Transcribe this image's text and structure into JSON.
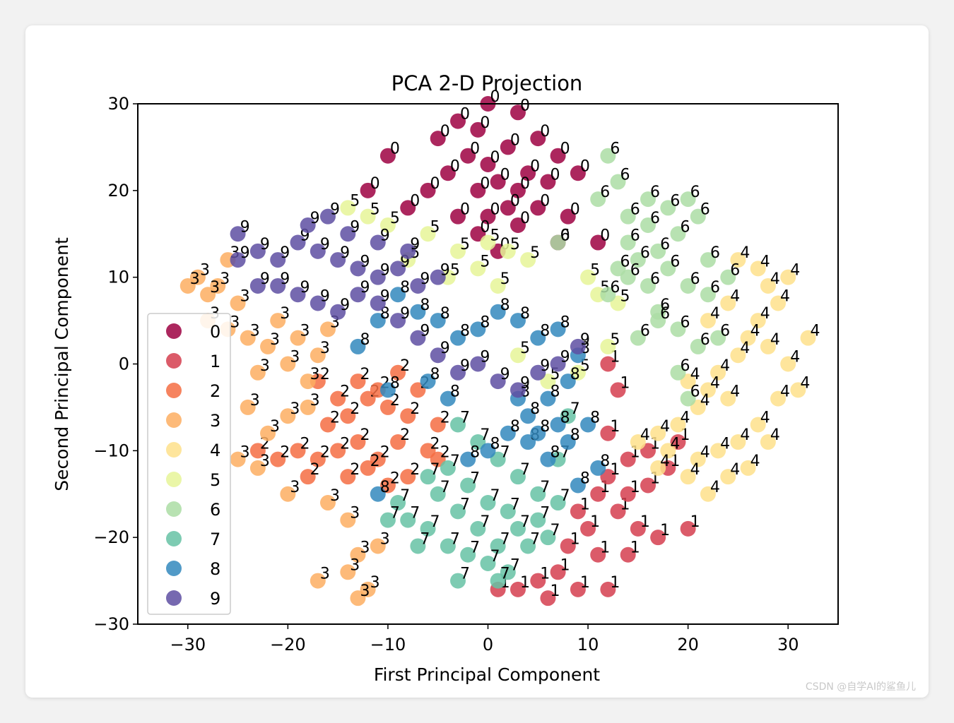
{
  "watermark": "CSDN @自学AI的鲨鱼儿",
  "chart_data": {
    "type": "scatter",
    "title": "PCA 2-D Projection",
    "xlabel": "First Principal Component",
    "ylabel": "Second Principal Component",
    "xlim": [
      -35,
      35
    ],
    "ylim": [
      -30,
      30
    ],
    "xticks": [
      -30,
      -20,
      -10,
      0,
      10,
      20,
      30
    ],
    "yticks": [
      -30,
      -20,
      -10,
      0,
      10,
      20,
      30
    ],
    "grid": false,
    "legend_position": "left",
    "colormap": "Spectral",
    "marker_annotations": "digit label drawn next to each point",
    "series": [
      {
        "name": "0",
        "color": "#9e0142",
        "points": [
          [
            0,
            30
          ],
          [
            -3,
            28
          ],
          [
            3,
            29
          ],
          [
            -5,
            26
          ],
          [
            -1,
            27
          ],
          [
            2,
            25
          ],
          [
            5,
            26
          ],
          [
            7,
            24
          ],
          [
            -2,
            24
          ],
          [
            0,
            23
          ],
          [
            4,
            22
          ],
          [
            -4,
            22
          ],
          [
            1,
            21
          ],
          [
            -1,
            20
          ],
          [
            3,
            20
          ],
          [
            6,
            21
          ],
          [
            -6,
            20
          ],
          [
            -10,
            24
          ],
          [
            -12,
            20
          ],
          [
            -8,
            18
          ],
          [
            2,
            18
          ],
          [
            5,
            18
          ],
          [
            8,
            17
          ],
          [
            9,
            22
          ],
          [
            -3,
            17
          ],
          [
            0,
            17
          ],
          [
            3,
            16
          ],
          [
            11,
            14
          ],
          [
            -1,
            15
          ],
          [
            7,
            14
          ],
          [
            1,
            13
          ]
        ]
      },
      {
        "name": "1",
        "color": "#d53e4f",
        "points": [
          [
            12,
            0
          ],
          [
            13,
            -3
          ],
          [
            12,
            -8
          ],
          [
            14,
            -11
          ],
          [
            11,
            -15
          ],
          [
            13,
            -17
          ],
          [
            15,
            -19
          ],
          [
            10,
            -19
          ],
          [
            8,
            -21
          ],
          [
            11,
            -22
          ],
          [
            14,
            -22
          ],
          [
            7,
            -24
          ],
          [
            5,
            -25
          ],
          [
            9,
            -26
          ],
          [
            12,
            -26
          ],
          [
            3,
            -26
          ],
          [
            1,
            -26
          ],
          [
            6,
            -27
          ],
          [
            20,
            -19
          ],
          [
            17,
            -20
          ],
          [
            18,
            -12
          ],
          [
            16,
            -14
          ],
          [
            14,
            -15
          ],
          [
            9,
            -17
          ],
          [
            12,
            -13
          ],
          [
            19,
            -9
          ],
          [
            16,
            -10
          ]
        ]
      },
      {
        "name": "2",
        "color": "#f46d43",
        "points": [
          [
            -17,
            -11
          ],
          [
            -15,
            -10
          ],
          [
            -13,
            -9
          ],
          [
            -11,
            -11
          ],
          [
            -9,
            -9
          ],
          [
            -8,
            -6
          ],
          [
            -10,
            -5
          ],
          [
            -12,
            -4
          ],
          [
            -14,
            -6
          ],
          [
            -16,
            -7
          ],
          [
            -19,
            -10
          ],
          [
            -21,
            -11
          ],
          [
            -23,
            -10
          ],
          [
            -18,
            -13
          ],
          [
            -14,
            -13
          ],
          [
            -12,
            -12
          ],
          [
            -10,
            -14
          ],
          [
            -8,
            -13
          ],
          [
            -6,
            -10
          ],
          [
            -5,
            -7
          ],
          [
            -7,
            -3
          ],
          [
            -9,
            -1
          ],
          [
            -11,
            -3
          ],
          [
            -13,
            -2
          ],
          [
            -15,
            -4
          ],
          [
            -17,
            -2
          ],
          [
            -5,
            -11
          ]
        ]
      },
      {
        "name": "3",
        "color": "#fdae61",
        "points": [
          [
            -29,
            10
          ],
          [
            -28,
            5
          ],
          [
            -27,
            9
          ],
          [
            -26,
            4
          ],
          [
            -25,
            7
          ],
          [
            -24,
            3
          ],
          [
            -23,
            -1
          ],
          [
            -22,
            2
          ],
          [
            -21,
            5
          ],
          [
            -20,
            0
          ],
          [
            -19,
            3
          ],
          [
            -18,
            -2
          ],
          [
            -17,
            1
          ],
          [
            -16,
            4
          ],
          [
            -24,
            -5
          ],
          [
            -22,
            -8
          ],
          [
            -20,
            -6
          ],
          [
            -18,
            -5
          ],
          [
            -25,
            -11
          ],
          [
            -23,
            -12
          ],
          [
            -20,
            -15
          ],
          [
            -16,
            -16
          ],
          [
            -14,
            -18
          ],
          [
            -13,
            -22
          ],
          [
            -14,
            -24
          ],
          [
            -17,
            -25
          ],
          [
            -11,
            -21
          ],
          [
            -12,
            -26
          ],
          [
            -13,
            -27
          ],
          [
            -26,
            12
          ],
          [
            -28,
            8
          ],
          [
            -30,
            9
          ]
        ]
      },
      {
        "name": "4",
        "color": "#fee08b",
        "points": [
          [
            25,
            12
          ],
          [
            27,
            11
          ],
          [
            28,
            9
          ],
          [
            29,
            7
          ],
          [
            27,
            5
          ],
          [
            26,
            3
          ],
          [
            28,
            2
          ],
          [
            30,
            0
          ],
          [
            25,
            1
          ],
          [
            23,
            -1
          ],
          [
            24,
            -4
          ],
          [
            22,
            -3
          ],
          [
            20,
            -2
          ],
          [
            21,
            -5
          ],
          [
            19,
            -7
          ],
          [
            17,
            -8
          ],
          [
            18,
            -10
          ],
          [
            21,
            -11
          ],
          [
            23,
            -10
          ],
          [
            25,
            -9
          ],
          [
            27,
            -7
          ],
          [
            24,
            -13
          ],
          [
            26,
            -12
          ],
          [
            22,
            -15
          ],
          [
            32,
            3
          ],
          [
            29,
            -4
          ],
          [
            30,
            10
          ],
          [
            24,
            7
          ],
          [
            22,
            5
          ],
          [
            31,
            -3
          ],
          [
            28,
            -9
          ],
          [
            15,
            -9
          ],
          [
            17,
            -12
          ],
          [
            20,
            -13
          ]
        ]
      },
      {
        "name": "5",
        "color": "#e6f598",
        "points": [
          [
            -14,
            18
          ],
          [
            -12,
            17
          ],
          [
            -10,
            16
          ],
          [
            -6,
            15
          ],
          [
            -3,
            13
          ],
          [
            0,
            14
          ],
          [
            2,
            13
          ],
          [
            4,
            12
          ],
          [
            -1,
            11
          ],
          [
            -4,
            10
          ],
          [
            1,
            9
          ],
          [
            10,
            10
          ],
          [
            11,
            8
          ],
          [
            13,
            7
          ],
          [
            12,
            2
          ],
          [
            9,
            -1
          ],
          [
            6,
            -2
          ],
          [
            3,
            1
          ],
          [
            -8,
            12
          ]
        ]
      },
      {
        "name": "6",
        "color": "#abdda4",
        "points": [
          [
            12,
            24
          ],
          [
            13,
            21
          ],
          [
            11,
            19
          ],
          [
            14,
            17
          ],
          [
            16,
            16
          ],
          [
            18,
            18
          ],
          [
            20,
            19
          ],
          [
            21,
            17
          ],
          [
            19,
            15
          ],
          [
            17,
            13
          ],
          [
            15,
            12
          ],
          [
            14,
            10
          ],
          [
            16,
            9
          ],
          [
            18,
            11
          ],
          [
            20,
            9
          ],
          [
            22,
            8
          ],
          [
            17,
            6
          ],
          [
            19,
            4
          ],
          [
            15,
            3
          ],
          [
            21,
            2
          ],
          [
            23,
            3
          ],
          [
            19,
            -1
          ],
          [
            20,
            -4
          ],
          [
            17,
            5
          ],
          [
            7,
            14
          ],
          [
            12,
            8
          ],
          [
            13,
            11
          ],
          [
            22,
            12
          ],
          [
            24,
            10
          ],
          [
            16,
            19
          ],
          [
            14,
            14
          ]
        ]
      },
      {
        "name": "7",
        "color": "#66c2a5",
        "points": [
          [
            -3,
            -7
          ],
          [
            -1,
            -9
          ],
          [
            1,
            -11
          ],
          [
            3,
            -13
          ],
          [
            5,
            -15
          ],
          [
            -5,
            -15
          ],
          [
            -3,
            -17
          ],
          [
            -1,
            -19
          ],
          [
            1,
            -21
          ],
          [
            3,
            -19
          ],
          [
            5,
            -18
          ],
          [
            7,
            -16
          ],
          [
            -6,
            -19
          ],
          [
            -4,
            -21
          ],
          [
            -2,
            -22
          ],
          [
            0,
            -23
          ],
          [
            2,
            -24
          ],
          [
            -7,
            -21
          ],
          [
            -8,
            -18
          ],
          [
            -9,
            -16
          ],
          [
            -6,
            -13
          ],
          [
            -4,
            -12
          ],
          [
            -2,
            -14
          ],
          [
            0,
            -16
          ],
          [
            2,
            -17
          ],
          [
            4,
            -21
          ],
          [
            6,
            -20
          ],
          [
            -10,
            -18
          ],
          [
            -3,
            -25
          ],
          [
            1,
            -25
          ],
          [
            7,
            -11
          ],
          [
            8,
            -6
          ]
        ]
      },
      {
        "name": "8",
        "color": "#3288bd",
        "points": [
          [
            -9,
            8
          ],
          [
            -7,
            6
          ],
          [
            -5,
            5
          ],
          [
            -3,
            3
          ],
          [
            -1,
            4
          ],
          [
            1,
            6
          ],
          [
            3,
            5
          ],
          [
            5,
            3
          ],
          [
            7,
            4
          ],
          [
            9,
            1
          ],
          [
            8,
            -2
          ],
          [
            6,
            -4
          ],
          [
            4,
            -6
          ],
          [
            2,
            -8
          ],
          [
            0,
            -10
          ],
          [
            -2,
            -11
          ],
          [
            4,
            -9
          ],
          [
            6,
            -11
          ],
          [
            8,
            -9
          ],
          [
            10,
            -7
          ],
          [
            11,
            -12
          ],
          [
            9,
            -14
          ],
          [
            -11,
            5
          ],
          [
            -13,
            2
          ],
          [
            -10,
            -3
          ],
          [
            -6,
            -2
          ],
          [
            -4,
            -4
          ],
          [
            3,
            -4
          ],
          [
            5,
            -8
          ],
          [
            7,
            -7
          ],
          [
            -11,
            -15
          ]
        ]
      },
      {
        "name": "9",
        "color": "#5e4fa2",
        "points": [
          [
            -25,
            15
          ],
          [
            -23,
            13
          ],
          [
            -21,
            12
          ],
          [
            -19,
            14
          ],
          [
            -17,
            13
          ],
          [
            -15,
            12
          ],
          [
            -13,
            11
          ],
          [
            -11,
            10
          ],
          [
            -9,
            11
          ],
          [
            -7,
            9
          ],
          [
            -21,
            9
          ],
          [
            -19,
            8
          ],
          [
            -17,
            7
          ],
          [
            -15,
            6
          ],
          [
            -13,
            8
          ],
          [
            -11,
            7
          ],
          [
            -9,
            5
          ],
          [
            -7,
            3
          ],
          [
            -5,
            1
          ],
          [
            -3,
            -1
          ],
          [
            -1,
            0
          ],
          [
            1,
            -2
          ],
          [
            3,
            -3
          ],
          [
            5,
            -1
          ],
          [
            7,
            0
          ],
          [
            9,
            2
          ],
          [
            -23,
            9
          ],
          [
            -25,
            12
          ],
          [
            -14,
            15
          ],
          [
            -11,
            14
          ],
          [
            -8,
            13
          ],
          [
            -5,
            10
          ],
          [
            -18,
            16
          ],
          [
            -16,
            17
          ]
        ]
      }
    ]
  }
}
